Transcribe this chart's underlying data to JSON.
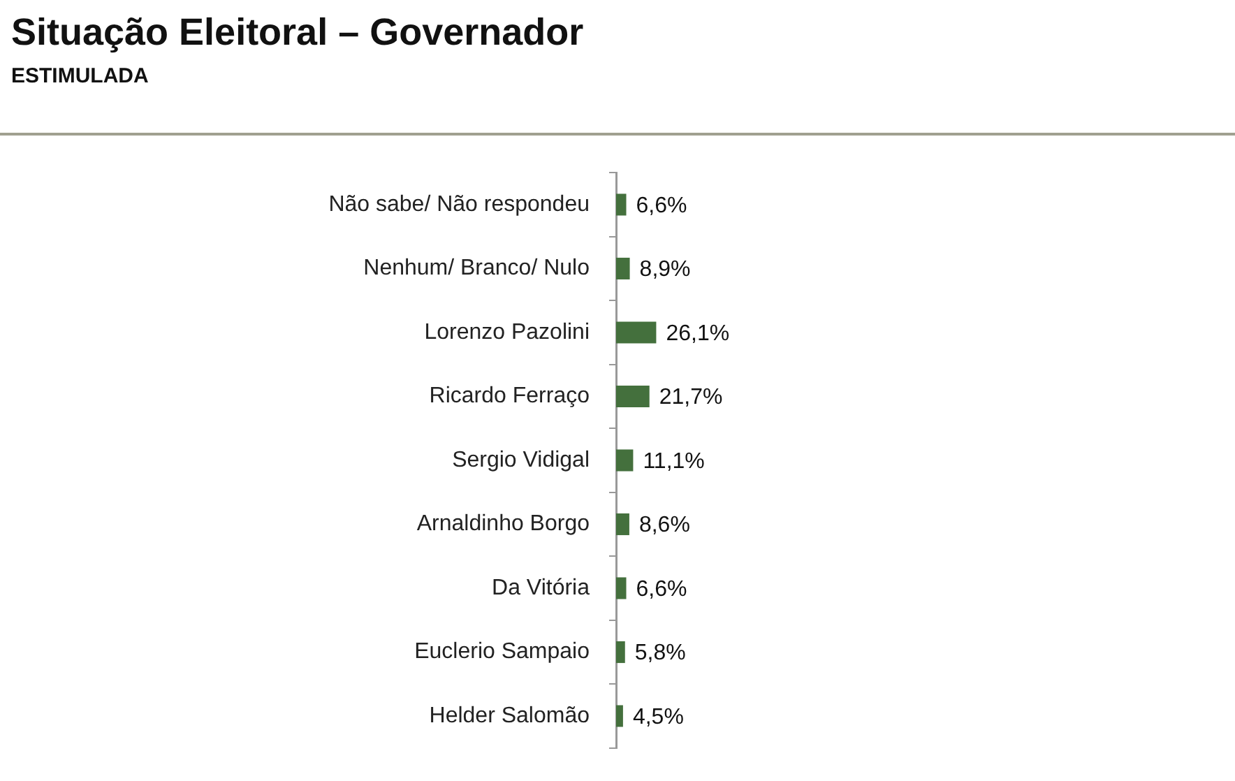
{
  "chart_data": {
    "type": "bar",
    "orientation": "horizontal",
    "title": "Situação Eleitoral – Governador",
    "subtitle": "ESTIMULADA",
    "categories": [
      "Não sabe/ Não respondeu",
      "Nenhum/ Branco/ Nulo",
      "Lorenzo Pazolini",
      "Ricardo Ferraço",
      "Sergio Vidigal",
      "Arnaldinho Borgo",
      "Da Vitória",
      "Euclerio Sampaio",
      "Helder Salomão"
    ],
    "values": [
      6.6,
      8.9,
      26.1,
      21.7,
      11.1,
      8.6,
      6.6,
      5.8,
      4.5
    ],
    "value_labels": [
      "6,6%",
      "8,9%",
      "26,1%",
      "21,7%",
      "11,1%",
      "8,6%",
      "6,6%",
      "5,8%",
      "4,5%"
    ],
    "color": "#44703d"
  }
}
